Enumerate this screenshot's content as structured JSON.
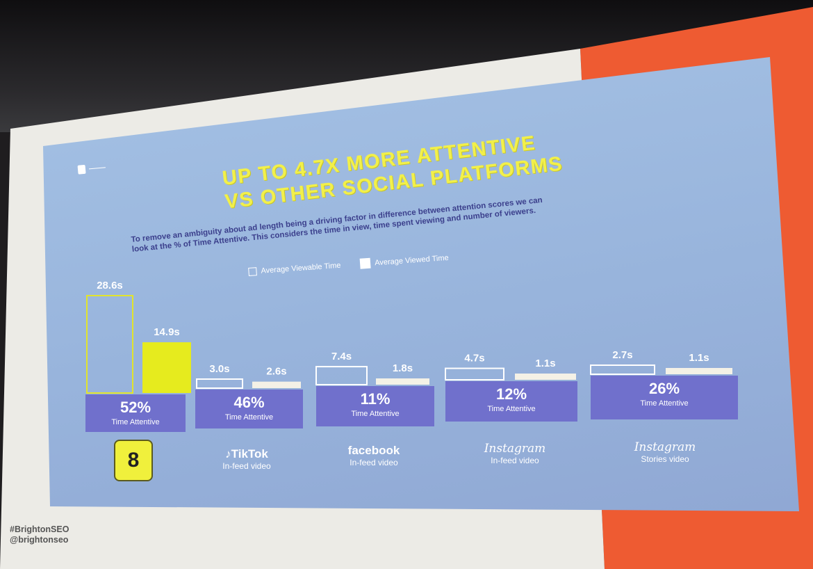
{
  "footer": {
    "hashtag": "#BrightonSEO",
    "handle": "@brightonseo"
  },
  "slide": {
    "title_line1": "UP TO 4.7X MORE ATTENTIVE",
    "title_line2": "VS OTHER SOCIAL PLATFORMS",
    "subtitle_line1": "To remove an ambiguity about ad length being a driving factor in difference between attention scores we can",
    "subtitle_line2": "look at the % of Time Attentive. This considers the time in view, time spent viewing and number of viewers."
  },
  "chart_data": {
    "type": "bar",
    "categories": [
      "Snapchat",
      "TikTok In-feed video",
      "facebook In-feed video",
      "Instagram In-feed video",
      "Instagram Stories video"
    ],
    "series": [
      {
        "name": "Average Viewable Time",
        "values": [
          28.6,
          3.0,
          7.4,
          4.7,
          2.7
        ],
        "value_labels": [
          "28.6s",
          "3.0s",
          "7.4s",
          "4.7s",
          "2.7s"
        ]
      },
      {
        "name": "Average Viewed Time",
        "values": [
          14.9,
          2.6,
          1.8,
          1.1,
          1.1
        ],
        "value_labels": [
          "14.9s",
          "2.6s",
          "1.8s",
          "1.1s",
          "1.1s"
        ]
      }
    ],
    "time_attentive": [
      "52%",
      "46%",
      "11%",
      "12%",
      "26%"
    ],
    "time_attentive_label": "Time Attentive",
    "legend_position": "top-center",
    "colors": {
      "highlight_fill": "#e6eb1e",
      "highlight_outline": "#e2e42b",
      "outline": "#ffffff",
      "fill": "#f4f1e6",
      "attentive_band": "#7070cc",
      "band_text": "#ffffff"
    }
  },
  "platforms": [
    {
      "icon": "snapchat-icon",
      "name": "8",
      "sub": ""
    },
    {
      "icon": "tiktok-icon",
      "name": "TikTok",
      "sub": "In-feed video"
    },
    {
      "icon": "facebook-icon",
      "name": "facebook",
      "sub": "In-feed video"
    },
    {
      "icon": "instagram-icon",
      "name": "Instagram",
      "sub": "In-feed video"
    },
    {
      "icon": "instagram-icon",
      "name": "Instagram",
      "sub": "Stories video"
    }
  ]
}
